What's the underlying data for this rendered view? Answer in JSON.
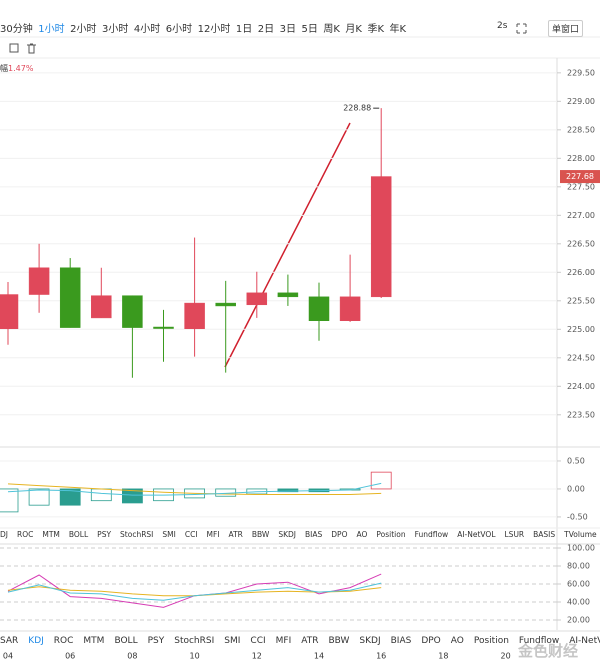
{
  "toolbar": {
    "intervals": [
      "30分钟",
      "1小时",
      "2小时",
      "3小时",
      "4小时",
      "6小时",
      "12小时",
      "1日",
      "2日",
      "3日",
      "5日",
      "周K",
      "月K",
      "季K",
      "年K"
    ],
    "active_index": 1,
    "refresh": "2s",
    "window_mode": "单窗口"
  },
  "amplitude": {
    "label": "幅",
    "value": "1.47%"
  },
  "chart_data": [
    {
      "type": "candlestick",
      "categories": [
        "04",
        null,
        "06",
        null,
        "08",
        null,
        "10",
        null,
        "12",
        null,
        "14",
        null,
        "16"
      ],
      "open": [
        225.01,
        225.61,
        226.08,
        225.2,
        225.59,
        225.04,
        225.01,
        225.46,
        225.43,
        225.64,
        225.57,
        225.15,
        225.57
      ],
      "high": [
        225.83,
        226.5,
        226.25,
        226.08,
        225.59,
        225.34,
        226.61,
        225.85,
        226.01,
        225.96,
        225.82,
        226.31,
        228.88
      ],
      "low": [
        224.73,
        225.29,
        225.03,
        225.2,
        224.15,
        224.43,
        224.52,
        224.24,
        225.2,
        225.41,
        224.8,
        225.13,
        225.55
      ],
      "close": [
        225.61,
        226.08,
        225.03,
        225.59,
        225.03,
        225.03,
        225.46,
        225.41,
        225.64,
        225.57,
        225.15,
        225.57,
        227.68
      ],
      "up_color": "#e0485a",
      "down_color": "#3a9a1e",
      "extra_x_labels": [
        "18",
        "20"
      ],
      "ylim": [
        222.97,
        229.69
      ],
      "yticks": [
        {
          "value": 223.5,
          "label": "223.50"
        },
        {
          "value": 224,
          "label": "224.00"
        },
        {
          "value": 224.5,
          "label": "224.50"
        },
        {
          "value": 225,
          "label": "225.00"
        },
        {
          "value": 225.5,
          "label": "225.50"
        },
        {
          "value": 226,
          "label": "226.00"
        },
        {
          "value": 226.5,
          "label": "226.50"
        },
        {
          "value": 227,
          "label": "227.00"
        },
        {
          "value": 227.5,
          "label": "227.50"
        },
        {
          "value": 228,
          "label": "228.00"
        },
        {
          "value": 228.5,
          "label": "228.50"
        },
        {
          "value": 229,
          "label": "229.00"
        },
        {
          "value": 229.5,
          "label": "229.50"
        }
      ],
      "grid": true
    },
    {
      "type": "histogram",
      "values": [
        -0.41,
        -0.29,
        -0.29,
        -0.21,
        -0.25,
        -0.21,
        -0.16,
        -0.13,
        -0.09,
        -0.05,
        -0.05,
        -0.02,
        0.3
      ],
      "colors": [
        "#2a9d8f",
        "#2a9d8f",
        "#2a9d8f",
        "#2a9d8f",
        "#2a9d8f",
        "#2a9d8f",
        "#2a9d8f",
        "#2a9d8f",
        "#2a9d8f",
        "#2a9d8f",
        "#2a9d8f",
        "#2a9d8f",
        "#e0485a"
      ],
      "filled": [
        false,
        false,
        true,
        false,
        true,
        false,
        false,
        false,
        false,
        true,
        true,
        false,
        false
      ],
      "series": [
        {
          "color": "#e6b422",
          "values": [
            0.09,
            0.06,
            0.03,
            0.0,
            -0.03,
            -0.06,
            -0.08,
            -0.09,
            -0.1,
            -0.1,
            -0.1,
            -0.1,
            -0.08
          ]
        },
        {
          "color": "#4fc3d9",
          "values": [
            -0.05,
            -0.02,
            -0.03,
            -0.08,
            -0.11,
            -0.11,
            -0.1,
            -0.08,
            -0.05,
            -0.04,
            -0.03,
            -0.02,
            0.1
          ]
        }
      ],
      "ylim": [
        -0.68,
        0.66
      ],
      "yticks": [
        {
          "value": 0.5,
          "label": "0.50"
        },
        {
          "value": 0,
          "label": "0.00"
        },
        {
          "value": -0.5,
          "label": "-0.50"
        }
      ]
    },
    {
      "type": "line",
      "series": [
        {
          "color": "#d63cb4",
          "values": [
            52,
            70,
            46,
            44,
            39,
            34,
            47,
            50,
            60,
            62,
            49,
            56,
            71
          ]
        },
        {
          "color": "#e6b422",
          "values": [
            53,
            57,
            53,
            52,
            49,
            47,
            47,
            49,
            51,
            52,
            51,
            52,
            56
          ]
        },
        {
          "color": "#4fc3d9",
          "values": [
            51,
            59,
            50,
            49,
            44,
            42,
            47,
            50,
            53,
            56,
            51,
            53,
            61
          ]
        }
      ],
      "ylim": [
        11.1,
        108.9
      ],
      "yticks": [
        {
          "value": 100,
          "label": "100.00"
        },
        {
          "value": 80,
          "label": "80.00"
        },
        {
          "value": 60,
          "label": "60.00"
        },
        {
          "value": 40,
          "label": "40.00"
        },
        {
          "value": 20,
          "label": "20.00"
        }
      ],
      "grid_dashed": true
    }
  ],
  "indicator_tabs": [
    "DJ",
    "ROC",
    "MTM",
    "BOLL",
    "PSY",
    "StochRSI",
    "SMI",
    "CCI",
    "MFI",
    "ATR",
    "BBW",
    "SKDJ",
    "BIAS",
    "DPO",
    "AO",
    "Position",
    "Fundflow",
    "AI-NetVOL",
    "LSUR",
    "BASIS",
    "TVolume"
  ],
  "bottom_tabs": [
    "SAR",
    "KDJ",
    "ROC",
    "MTM",
    "BOLL",
    "PSY",
    "StochRSI",
    "SMI",
    "CCI",
    "MFI",
    "ATR",
    "BBW",
    "SKDJ",
    "BIAS",
    "DPO",
    "AO",
    "Position",
    "Fundflow",
    "AI-NetVOL"
  ],
  "bottom_active_index": 1,
  "watermark": "金色财经"
}
